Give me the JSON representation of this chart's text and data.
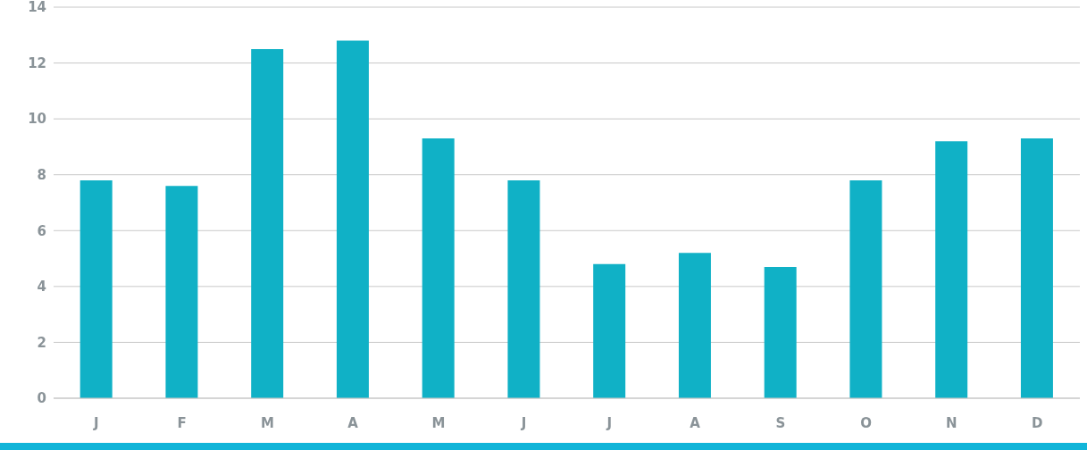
{
  "chart_data": {
    "type": "bar",
    "categories": [
      "J",
      "F",
      "M",
      "A",
      "M",
      "J",
      "J",
      "A",
      "S",
      "O",
      "N",
      "D"
    ],
    "values": [
      7.8,
      7.6,
      12.5,
      12.8,
      9.3,
      7.8,
      4.8,
      5.2,
      4.7,
      7.8,
      9.2,
      9.3
    ],
    "color": "#10b1c6",
    "ylim": [
      0,
      14
    ],
    "yticks": [
      0,
      2,
      4,
      6,
      8,
      10,
      12,
      14
    ],
    "grid": "y"
  }
}
